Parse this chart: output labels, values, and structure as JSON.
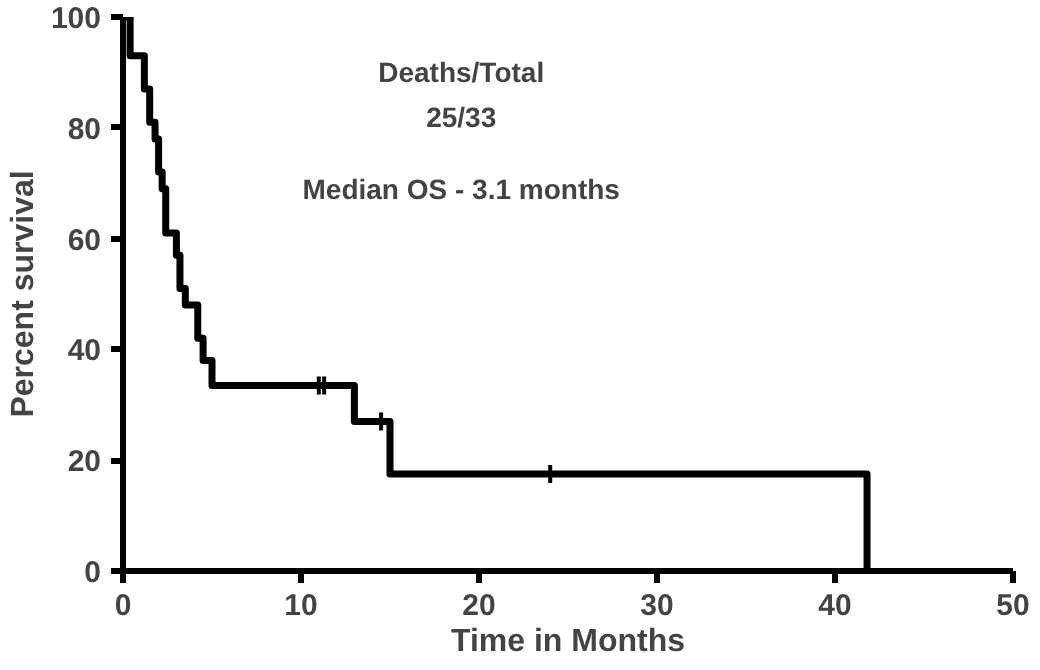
{
  "chart_data": {
    "type": "step",
    "xlabel": "Time in Months",
    "ylabel": "Percent survival",
    "xlim": [
      0,
      50
    ],
    "ylim": [
      0,
      100
    ],
    "xticks": [
      0,
      10,
      20,
      30,
      40,
      50
    ],
    "yticks": [
      0,
      20,
      40,
      60,
      80,
      100
    ],
    "grid": false,
    "annotations": [
      "Deaths/Total",
      "25/33",
      "Median OS - 3.1 months"
    ],
    "series": [
      {
        "color": "#000000",
        "x": [
          0,
          0.4,
          1.2,
          1.5,
          1.8,
          2.0,
          2.2,
          2.4,
          3.0,
          3.2,
          3.5,
          4.2,
          4.5,
          5.0,
          13.0,
          15.0,
          41.8,
          41.8
        ],
        "values": [
          100,
          93,
          87,
          81,
          78,
          72,
          69,
          61,
          57,
          51,
          48,
          42,
          38,
          33.5,
          27,
          17.5,
          0,
          0
        ]
      },
      {
        "type": "scatter",
        "marker": "cross",
        "color": "#000000",
        "x": [
          11.0,
          11.3,
          14.5,
          24.0
        ],
        "values": [
          33.5,
          33.5,
          27,
          17.5
        ]
      }
    ]
  }
}
